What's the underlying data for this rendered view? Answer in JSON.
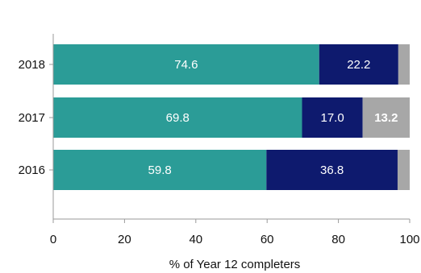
{
  "chart_data": {
    "type": "bar",
    "orientation": "horizontal",
    "stacked": true,
    "categories": [
      "2018",
      "2017",
      "2016"
    ],
    "series": [
      {
        "color": "#2b9c97",
        "values": [
          74.6,
          69.8,
          59.8
        ],
        "labels": [
          "74.6",
          "69.8",
          "59.8"
        ]
      },
      {
        "color": "#0e1a6e",
        "values": [
          22.2,
          17.0,
          36.8
        ],
        "labels": [
          "22.2",
          "17.0",
          "36.8"
        ]
      },
      {
        "color": "#a7a7a7",
        "values": [
          3.2,
          13.2,
          3.4
        ],
        "labels": [
          "",
          "13.2",
          ""
        ]
      }
    ],
    "xlabel": "% of Year 12 completers",
    "ylabel": "",
    "xlim": [
      0,
      100
    ],
    "xticks": [
      "0",
      "20",
      "40",
      "60",
      "80",
      "100"
    ],
    "grid": false,
    "legend": "none"
  }
}
